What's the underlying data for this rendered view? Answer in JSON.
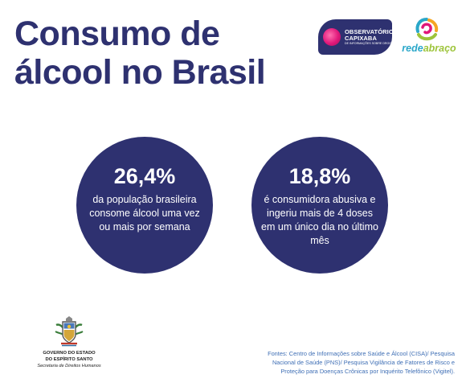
{
  "title": {
    "line1": "Consumo de",
    "line2": "álcool no Brasil"
  },
  "logos": {
    "observatorio": {
      "line1": "OBSERVATÓRIO",
      "line2": "CAPIXABA",
      "line3": "DE INFORMAÇÕES SOBRE DROGAS",
      "colors": {
        "background": "#2e3170",
        "accent": "#e0187a"
      }
    },
    "rede_abraco": {
      "part1": "rede",
      "part2": "abraço",
      "colors": {
        "part1": "#2aa7c9",
        "part2": "#9dc43a"
      }
    }
  },
  "stats": [
    {
      "value": "26,4%",
      "description": "da população brasileira consome álcool uma vez ou mais por semana"
    },
    {
      "value": "18,8%",
      "description": "é consumidora abusiva e ingeriu mais de 4 doses em um único dia no último mês"
    }
  ],
  "government": {
    "line1": "GOVERNO DO ESTADO",
    "line2": "DO ESPÍRITO SANTO",
    "line3": "Secretaria de Direitos Humanos"
  },
  "sources": {
    "line1": "Fontes: Centro de Informações sobre Saúde e Álcool (CISA)/ Pesquisa",
    "line2": "Nacional de Saúde (PNS)/ Pesquisa Vigilância de Fatores de Risco e",
    "line3": "Proteção para Doenças Crônicas por Inquérito Telefônico (Vigitel)."
  },
  "colors": {
    "primary": "#2e3170",
    "sources_text": "#3f6fb5",
    "background": "#ffffff"
  }
}
